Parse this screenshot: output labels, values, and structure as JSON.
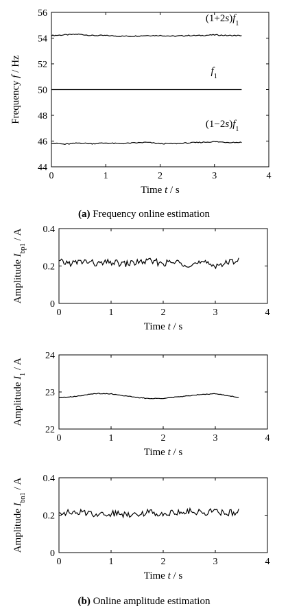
{
  "chart_data": [
    {
      "type": "line",
      "panel_label": "(a)",
      "title": "Frequency online estimation",
      "xlabel": "Time t / s",
      "ylabel": "Frequency f / Hz",
      "xlim": [
        0,
        4
      ],
      "ylim": [
        44,
        56
      ],
      "xticks": [
        0,
        1,
        2,
        3,
        4
      ],
      "yticks": [
        44,
        46,
        48,
        50,
        52,
        54,
        56
      ],
      "grid": false,
      "series": [
        {
          "name": "(1+2s)f1",
          "x": [
            0,
            0.25,
            0.5,
            0.75,
            1.0,
            1.25,
            1.5,
            1.75,
            2.0,
            2.25,
            2.5,
            2.75,
            3.0,
            3.25,
            3.5
          ],
          "y": [
            54.2,
            54.25,
            54.3,
            54.2,
            54.2,
            54.15,
            54.15,
            54.2,
            54.2,
            54.15,
            54.2,
            54.2,
            54.25,
            54.2,
            54.2
          ]
        },
        {
          "name": "f1",
          "x": [
            0,
            3.5
          ],
          "y": [
            50,
            50
          ]
        },
        {
          "name": "(1−2s)f1",
          "x": [
            0,
            0.25,
            0.5,
            0.75,
            1.0,
            1.25,
            1.5,
            1.75,
            2.0,
            2.25,
            2.5,
            2.75,
            3.0,
            3.25,
            3.5
          ],
          "y": [
            45.85,
            45.75,
            45.85,
            45.8,
            45.85,
            45.8,
            45.85,
            45.9,
            45.8,
            45.8,
            45.85,
            45.9,
            45.95,
            45.9,
            45.9
          ]
        }
      ],
      "annotations": [
        {
          "text": "(1+2s)f1",
          "x": 3.45,
          "y": 55.3
        },
        {
          "text": "f1",
          "x": 3.05,
          "y": 51.2
        },
        {
          "text": "(1−2s)f1",
          "x": 3.45,
          "y": 47.1
        }
      ]
    },
    {
      "type": "line",
      "panel_label": "(b)",
      "title": "Online amplitude estimation",
      "xlabel": "Time t / s",
      "ylabel": "Amplitude Ibp1 / A",
      "xlim": [
        0,
        4
      ],
      "ylim": [
        0,
        0.4
      ],
      "xticks": [
        0,
        1,
        2,
        3,
        4
      ],
      "yticks": [
        0,
        0.2,
        0.4
      ],
      "grid": false,
      "series": [
        {
          "x": [
            0,
            0.25,
            0.5,
            0.75,
            1.0,
            1.25,
            1.5,
            1.75,
            2.0,
            2.25,
            2.5,
            2.75,
            3.0,
            3.25,
            3.45
          ],
          "y": [
            0.22,
            0.215,
            0.225,
            0.21,
            0.22,
            0.21,
            0.22,
            0.225,
            0.215,
            0.22,
            0.21,
            0.215,
            0.205,
            0.215,
            0.24
          ]
        }
      ]
    },
    {
      "type": "line",
      "xlabel": "Time t / s",
      "ylabel": "Amplitude I1 / A",
      "xlim": [
        0,
        4
      ],
      "ylim": [
        22,
        24
      ],
      "xticks": [
        0,
        1,
        2,
        3,
        4
      ],
      "yticks": [
        22,
        23,
        24
      ],
      "grid": false,
      "series": [
        {
          "x": [
            0,
            0.25,
            0.5,
            0.75,
            1.0,
            1.25,
            1.5,
            1.75,
            2.0,
            2.25,
            2.5,
            2.75,
            3.0,
            3.25,
            3.45
          ],
          "y": [
            22.85,
            22.87,
            22.92,
            22.96,
            22.95,
            22.9,
            22.85,
            22.82,
            22.83,
            22.86,
            22.9,
            22.94,
            22.95,
            22.9,
            22.85
          ]
        }
      ]
    },
    {
      "type": "line",
      "xlabel": "Time t / s",
      "ylabel": "Amplitude Ibn1 / A",
      "xlim": [
        0,
        4
      ],
      "ylim": [
        0,
        0.4
      ],
      "xticks": [
        0,
        1,
        2,
        3,
        4
      ],
      "yticks": [
        0,
        0.2,
        0.4
      ],
      "grid": false,
      "series": [
        {
          "x": [
            0,
            0.25,
            0.5,
            0.75,
            1.0,
            1.25,
            1.5,
            1.75,
            2.0,
            2.25,
            2.5,
            2.75,
            3.0,
            3.25,
            3.45
          ],
          "y": [
            0.22,
            0.21,
            0.215,
            0.205,
            0.21,
            0.205,
            0.21,
            0.215,
            0.21,
            0.215,
            0.22,
            0.215,
            0.22,
            0.21,
            0.22
          ]
        }
      ]
    }
  ],
  "caption_b": "Online amplitude estimation",
  "panel_b_label": "(b)",
  "colors": {
    "line": "#000000",
    "axis": "#000000"
  }
}
